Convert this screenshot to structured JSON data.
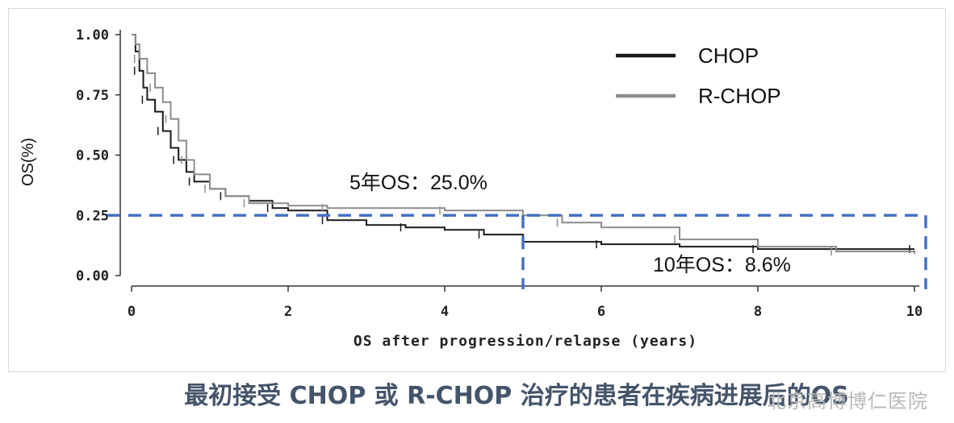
{
  "chart_data": {
    "type": "line",
    "title": "",
    "xlabel": "OS after progression/relapse (years)",
    "ylabel": "OS(%)",
    "xlim": [
      0,
      10
    ],
    "ylim": [
      0,
      1
    ],
    "x_ticks": [
      0,
      2,
      4,
      6,
      8,
      10
    ],
    "x_tick_labels": [
      "0",
      "2",
      "4",
      "6",
      "8",
      "10"
    ],
    "y_ticks": [
      0,
      0.25,
      0.5,
      0.75,
      1
    ],
    "y_tick_labels": [
      "0.00",
      "0.25",
      "0.50",
      "0.75",
      "1.00"
    ],
    "legend_position": "top-right",
    "series": [
      {
        "name": "CHOP",
        "color": "#1a1a1a",
        "x": [
          0,
          0.05,
          0.1,
          0.15,
          0.2,
          0.3,
          0.4,
          0.5,
          0.6,
          0.7,
          0.8,
          1.0,
          1.2,
          1.5,
          1.8,
          2.0,
          2.5,
          3.0,
          3.5,
          4.0,
          4.5,
          5.0,
          6.0,
          7.0,
          8.0,
          9.0,
          10.0
        ],
        "y": [
          1.0,
          0.93,
          0.85,
          0.78,
          0.73,
          0.68,
          0.6,
          0.53,
          0.48,
          0.43,
          0.39,
          0.36,
          0.33,
          0.31,
          0.28,
          0.27,
          0.23,
          0.21,
          0.2,
          0.19,
          0.17,
          0.14,
          0.13,
          0.12,
          0.11,
          0.11,
          0.11
        ]
      },
      {
        "name": "R-CHOP",
        "color": "#8c8c8c",
        "x": [
          0,
          0.05,
          0.1,
          0.2,
          0.3,
          0.4,
          0.5,
          0.6,
          0.7,
          0.8,
          1.0,
          1.2,
          1.5,
          2.0,
          2.5,
          3.0,
          4.0,
          5.0,
          5.5,
          6.0,
          7.0,
          8.0,
          9.0,
          10.0
        ],
        "y": [
          1.0,
          0.96,
          0.9,
          0.84,
          0.78,
          0.72,
          0.65,
          0.56,
          0.48,
          0.42,
          0.36,
          0.33,
          0.3,
          0.29,
          0.28,
          0.28,
          0.27,
          0.25,
          0.22,
          0.2,
          0.15,
          0.12,
          0.1,
          0.09
        ]
      }
    ],
    "annotations": [
      {
        "text": "5年OS：25.0%",
        "x_year": 5,
        "value": 0.25
      },
      {
        "text": "10年OS：8.6%",
        "x_year": 10,
        "value": 0.086
      }
    ],
    "reference_color": "#4472c4"
  },
  "caption": "最初接受 CHOP 或 R-CHOP 治疗的患者在疾病进展后的OS",
  "watermark": "北京高博博仁医院"
}
